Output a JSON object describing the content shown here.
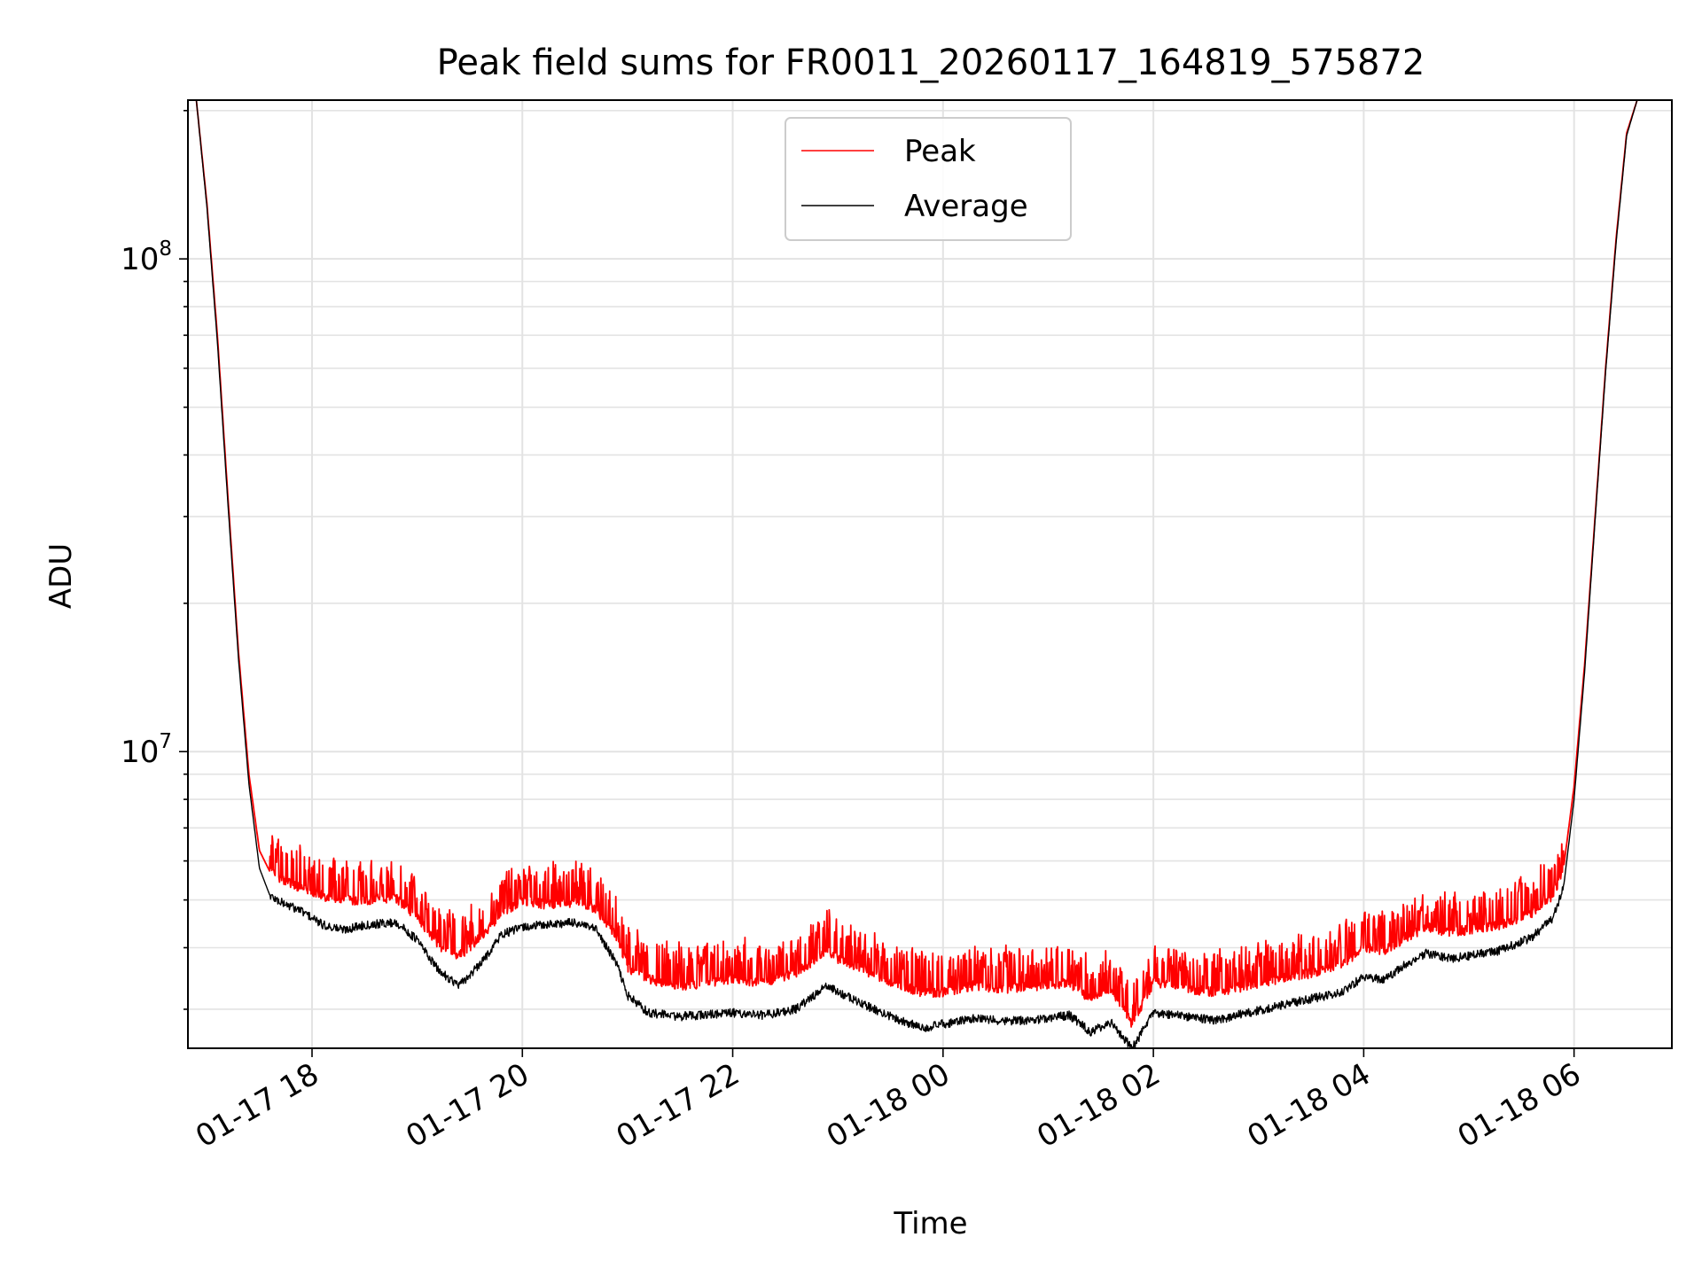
{
  "chart_data": {
    "type": "line",
    "title": "Peak field sums for FR0011_20260117_164819_575872",
    "xlabel": "Time",
    "ylabel": "ADU",
    "yscale": "log",
    "ylim": [
      2500000,
      210000000
    ],
    "x_unit": "hours since 01-17 00:00",
    "xlim": [
      16.82,
      30.93
    ],
    "x_ticks": [
      {
        "value": 18,
        "label": "01-17 18"
      },
      {
        "value": 20,
        "label": "01-17 20"
      },
      {
        "value": 22,
        "label": "01-17 22"
      },
      {
        "value": 24,
        "label": "01-18 00"
      },
      {
        "value": 26,
        "label": "01-18 02"
      },
      {
        "value": 28,
        "label": "01-18 04"
      },
      {
        "value": 30,
        "label": "01-18 06"
      }
    ],
    "y_major_ticks": [
      {
        "value": 10000000,
        "base": "10",
        "exp": "7"
      },
      {
        "value": 100000000,
        "base": "10",
        "exp": "8"
      }
    ],
    "grid": true,
    "legend": {
      "position": "upper center"
    },
    "series": [
      {
        "name": "Peak",
        "color": "#ff0000",
        "x": [
          16.9,
          17.0,
          17.1,
          17.2,
          17.3,
          17.4,
          17.5,
          17.6,
          17.7,
          17.9,
          18.1,
          18.3,
          18.5,
          18.8,
          19.0,
          19.2,
          19.4,
          19.6,
          19.8,
          20.0,
          20.2,
          20.5,
          20.7,
          20.9,
          21.0,
          21.2,
          21.5,
          21.8,
          22.0,
          22.3,
          22.6,
          22.9,
          23.0,
          23.2,
          23.5,
          23.8,
          24.0,
          24.3,
          24.6,
          24.9,
          25.2,
          25.4,
          25.6,
          25.8,
          26.0,
          26.3,
          26.6,
          26.9,
          27.2,
          27.5,
          27.8,
          28.0,
          28.2,
          28.4,
          28.6,
          28.8,
          29.0,
          29.3,
          29.6,
          29.8,
          29.9,
          30.0,
          30.1,
          30.2,
          30.3,
          30.4,
          30.5,
          30.6
        ],
        "y": [
          210000000,
          130000000,
          70000000,
          33000000,
          16000000,
          9000000,
          6300000,
          5700000,
          5500000,
          5300000,
          5100000,
          5000000,
          5000000,
          5050000,
          4600000,
          4050000,
          3850000,
          4200000,
          4700000,
          5000000,
          4900000,
          4950000,
          4800000,
          4200000,
          3650000,
          3450000,
          3350000,
          3400000,
          3450000,
          3400000,
          3550000,
          3950000,
          3800000,
          3650000,
          3400000,
          3250000,
          3250000,
          3350000,
          3300000,
          3350000,
          3400000,
          3150000,
          3300000,
          2800000,
          3400000,
          3300000,
          3250000,
          3350000,
          3450000,
          3550000,
          3700000,
          4000000,
          3950000,
          4200000,
          4400000,
          4300000,
          4350000,
          4450000,
          4700000,
          5100000,
          5800000,
          8500000,
          15000000,
          30000000,
          60000000,
          110000000,
          180000000,
          210000000
        ]
      },
      {
        "name": "Average",
        "color": "#000000",
        "x": [
          16.9,
          17.0,
          17.1,
          17.2,
          17.3,
          17.4,
          17.5,
          17.6,
          17.7,
          17.9,
          18.1,
          18.3,
          18.5,
          18.8,
          19.0,
          19.2,
          19.4,
          19.6,
          19.8,
          20.0,
          20.2,
          20.5,
          20.7,
          20.9,
          21.0,
          21.2,
          21.5,
          21.8,
          22.0,
          22.3,
          22.6,
          22.9,
          23.0,
          23.2,
          23.5,
          23.8,
          24.0,
          24.3,
          24.6,
          24.9,
          25.2,
          25.4,
          25.6,
          25.8,
          26.0,
          26.3,
          26.6,
          26.9,
          27.2,
          27.5,
          27.8,
          28.0,
          28.2,
          28.4,
          28.6,
          28.8,
          29.0,
          29.3,
          29.6,
          29.8,
          29.9,
          30.0,
          30.1,
          30.2,
          30.3,
          30.4,
          30.5,
          30.6
        ],
        "y": [
          210000000,
          128000000,
          68000000,
          32000000,
          15500000,
          8600000,
          5800000,
          5100000,
          4950000,
          4750000,
          4450000,
          4350000,
          4450000,
          4500000,
          4150000,
          3600000,
          3350000,
          3700000,
          4250000,
          4400000,
          4450000,
          4500000,
          4350000,
          3700000,
          3200000,
          2950000,
          2900000,
          2930000,
          2950000,
          2920000,
          3000000,
          3350000,
          3250000,
          3100000,
          2900000,
          2750000,
          2800000,
          2870000,
          2840000,
          2860000,
          2920000,
          2700000,
          2820000,
          2500000,
          2950000,
          2900000,
          2850000,
          2950000,
          3050000,
          3150000,
          3250000,
          3500000,
          3450000,
          3700000,
          3900000,
          3800000,
          3850000,
          3950000,
          4200000,
          4600000,
          5300000,
          8000000,
          14500000,
          29500000,
          59000000,
          108000000,
          178000000,
          210000000
        ]
      }
    ]
  }
}
